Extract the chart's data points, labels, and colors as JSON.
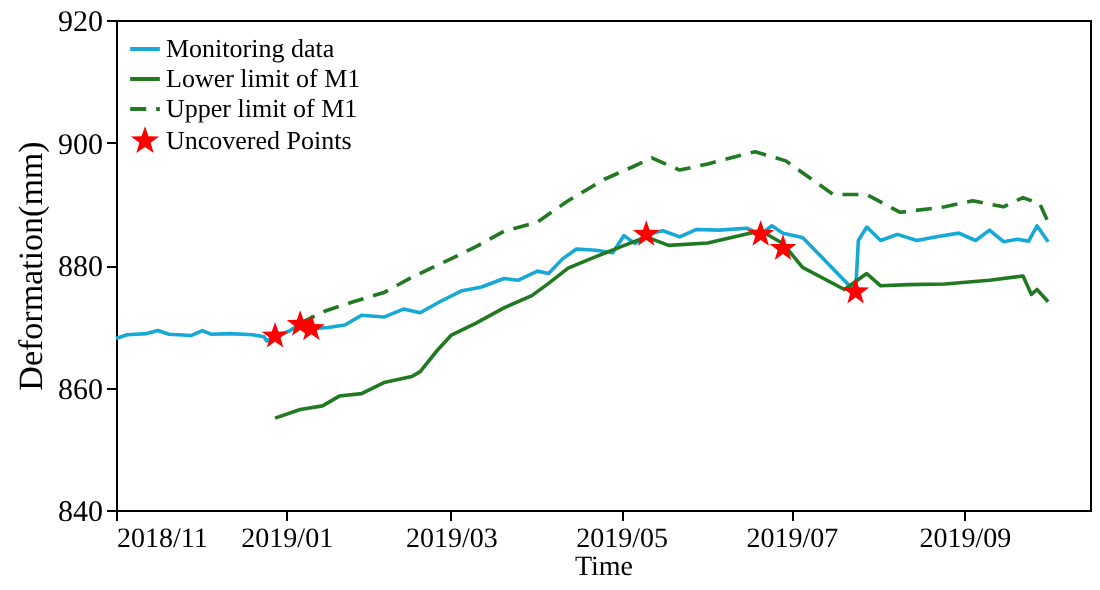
{
  "chart_data": {
    "type": "line",
    "xlabel": "Time",
    "ylabel": "Deformation(mm)",
    "xlim": [
      "2018-11-01",
      "2019-10-16"
    ],
    "xticks": [
      {
        "value": "2018-11-01",
        "label": "2018/11"
      },
      {
        "value": "2019-01-01",
        "label": "2019/01"
      },
      {
        "value": "2019-03-01",
        "label": "2019/03"
      },
      {
        "value": "2019-05-01",
        "label": "2019/05"
      },
      {
        "value": "2019-07-01",
        "label": "2019/07"
      },
      {
        "value": "2019-09-01",
        "label": "2019/09"
      }
    ],
    "ylim": [
      840,
      920
    ],
    "yticks": [
      840,
      860,
      880,
      900,
      920
    ],
    "grid": false,
    "legend": "top left",
    "series": [
      {
        "name": "Monitoring data",
        "color": "#17a9d6",
        "line_style": "solid",
        "x": [
          "2018-11-01",
          "2018-11-05",
          "2018-11-12",
          "2018-11-16",
          "2018-11-20",
          "2018-11-28",
          "2018-12-02",
          "2018-12-05",
          "2018-12-12",
          "2018-12-20",
          "2018-12-24",
          "2018-12-25",
          "2018-12-28",
          "2019-01-02",
          "2019-01-06",
          "2019-01-10",
          "2019-01-16",
          "2019-01-22",
          "2019-01-28",
          "2019-02-05",
          "2019-02-12",
          "2019-02-18",
          "2019-02-25",
          "2019-03-05",
          "2019-03-12",
          "2019-03-20",
          "2019-03-25",
          "2019-04-01",
          "2019-04-05",
          "2019-04-10",
          "2019-04-15",
          "2019-04-22",
          "2019-04-28",
          "2019-05-02",
          "2019-05-06",
          "2019-05-10",
          "2019-05-16",
          "2019-05-22",
          "2019-05-28",
          "2019-06-05",
          "2019-06-15",
          "2019-06-20",
          "2019-06-24",
          "2019-06-28",
          "2019-07-05",
          "2019-07-24",
          "2019-07-25",
          "2019-07-28",
          "2019-08-02",
          "2019-08-08",
          "2019-08-15",
          "2019-08-22",
          "2019-08-30",
          "2019-09-05",
          "2019-09-10",
          "2019-09-15",
          "2019-09-20",
          "2019-09-24",
          "2019-09-27",
          "2019-10-01"
        ],
        "values": [
          868.0,
          868.6,
          868.8,
          869.3,
          868.7,
          868.5,
          869.3,
          868.7,
          868.8,
          868.6,
          868.3,
          867.6,
          868.4,
          869.2,
          870.3,
          869.6,
          869.8,
          870.2,
          871.8,
          871.5,
          872.8,
          872.2,
          874.0,
          875.8,
          876.4,
          877.8,
          877.5,
          879.0,
          878.6,
          881.0,
          882.6,
          882.4,
          882.0,
          884.8,
          883.5,
          885.0,
          885.6,
          884.6,
          885.8,
          885.7,
          886.0,
          885.0,
          886.4,
          885.2,
          884.5,
          875.6,
          884.0,
          886.2,
          884.0,
          885.0,
          884.0,
          884.6,
          885.2,
          884.0,
          885.7,
          883.8,
          884.2,
          883.9,
          886.4,
          883.8
        ]
      },
      {
        "name": "Lower limit of M1",
        "color": "#217a21",
        "line_style": "solid",
        "x": [
          "2018-12-28",
          "2019-01-06",
          "2019-01-14",
          "2019-01-20",
          "2019-01-28",
          "2019-02-05",
          "2019-02-15",
          "2019-02-18",
          "2019-02-24",
          "2019-03-01",
          "2019-03-10",
          "2019-03-20",
          "2019-03-30",
          "2019-04-05",
          "2019-04-12",
          "2019-04-20",
          "2019-05-01",
          "2019-05-10",
          "2019-05-18",
          "2019-06-01",
          "2019-06-20",
          "2019-06-28",
          "2019-07-05",
          "2019-07-20",
          "2019-07-28",
          "2019-08-02",
          "2019-08-12",
          "2019-08-25",
          "2019-09-10",
          "2019-09-22",
          "2019-09-25",
          "2019-09-27",
          "2019-10-01"
        ],
        "values": [
          855.0,
          856.4,
          857.0,
          858.6,
          859.0,
          860.8,
          861.8,
          862.6,
          866.0,
          868.5,
          870.5,
          873.0,
          875.0,
          877.0,
          879.5,
          881.0,
          883.0,
          884.6,
          883.2,
          883.6,
          885.6,
          883.5,
          879.6,
          876.0,
          878.6,
          876.6,
          876.8,
          876.9,
          877.5,
          878.2,
          875.2,
          876.0,
          874.0
        ]
      },
      {
        "name": "Upper limit of M1",
        "color": "#217a21",
        "line_style": "dashed",
        "x": [
          "2019-01-06",
          "2019-01-15",
          "2019-01-25",
          "2019-02-05",
          "2019-02-15",
          "2019-03-01",
          "2019-03-10",
          "2019-03-20",
          "2019-04-01",
          "2019-04-12",
          "2019-04-25",
          "2019-05-05",
          "2019-05-12",
          "2019-05-22",
          "2019-06-01",
          "2019-06-18",
          "2019-06-29",
          "2019-07-16",
          "2019-07-28",
          "2019-08-09",
          "2019-08-25",
          "2019-09-04",
          "2019-09-15",
          "2019-09-22",
          "2019-09-28",
          "2019-10-01"
        ],
        "values": [
          870.5,
          872.5,
          874.0,
          875.5,
          878.0,
          881.0,
          883.0,
          885.5,
          887.0,
          890.5,
          894.0,
          896.0,
          897.5,
          895.5,
          896.5,
          898.5,
          897.0,
          891.5,
          891.5,
          888.6,
          889.5,
          890.5,
          889.5,
          891.0,
          890.0,
          887.0
        ]
      },
      {
        "name": "Uncovered Points",
        "type": "scatter",
        "color": "#ff0000",
        "marker": "star",
        "x": [
          "2018-12-28",
          "2019-01-06",
          "2019-01-10",
          "2019-05-10",
          "2019-06-20",
          "2019-06-28",
          "2019-07-24"
        ],
        "values": [
          868.4,
          870.3,
          869.6,
          885.0,
          885.0,
          882.7,
          875.6
        ]
      }
    ]
  }
}
